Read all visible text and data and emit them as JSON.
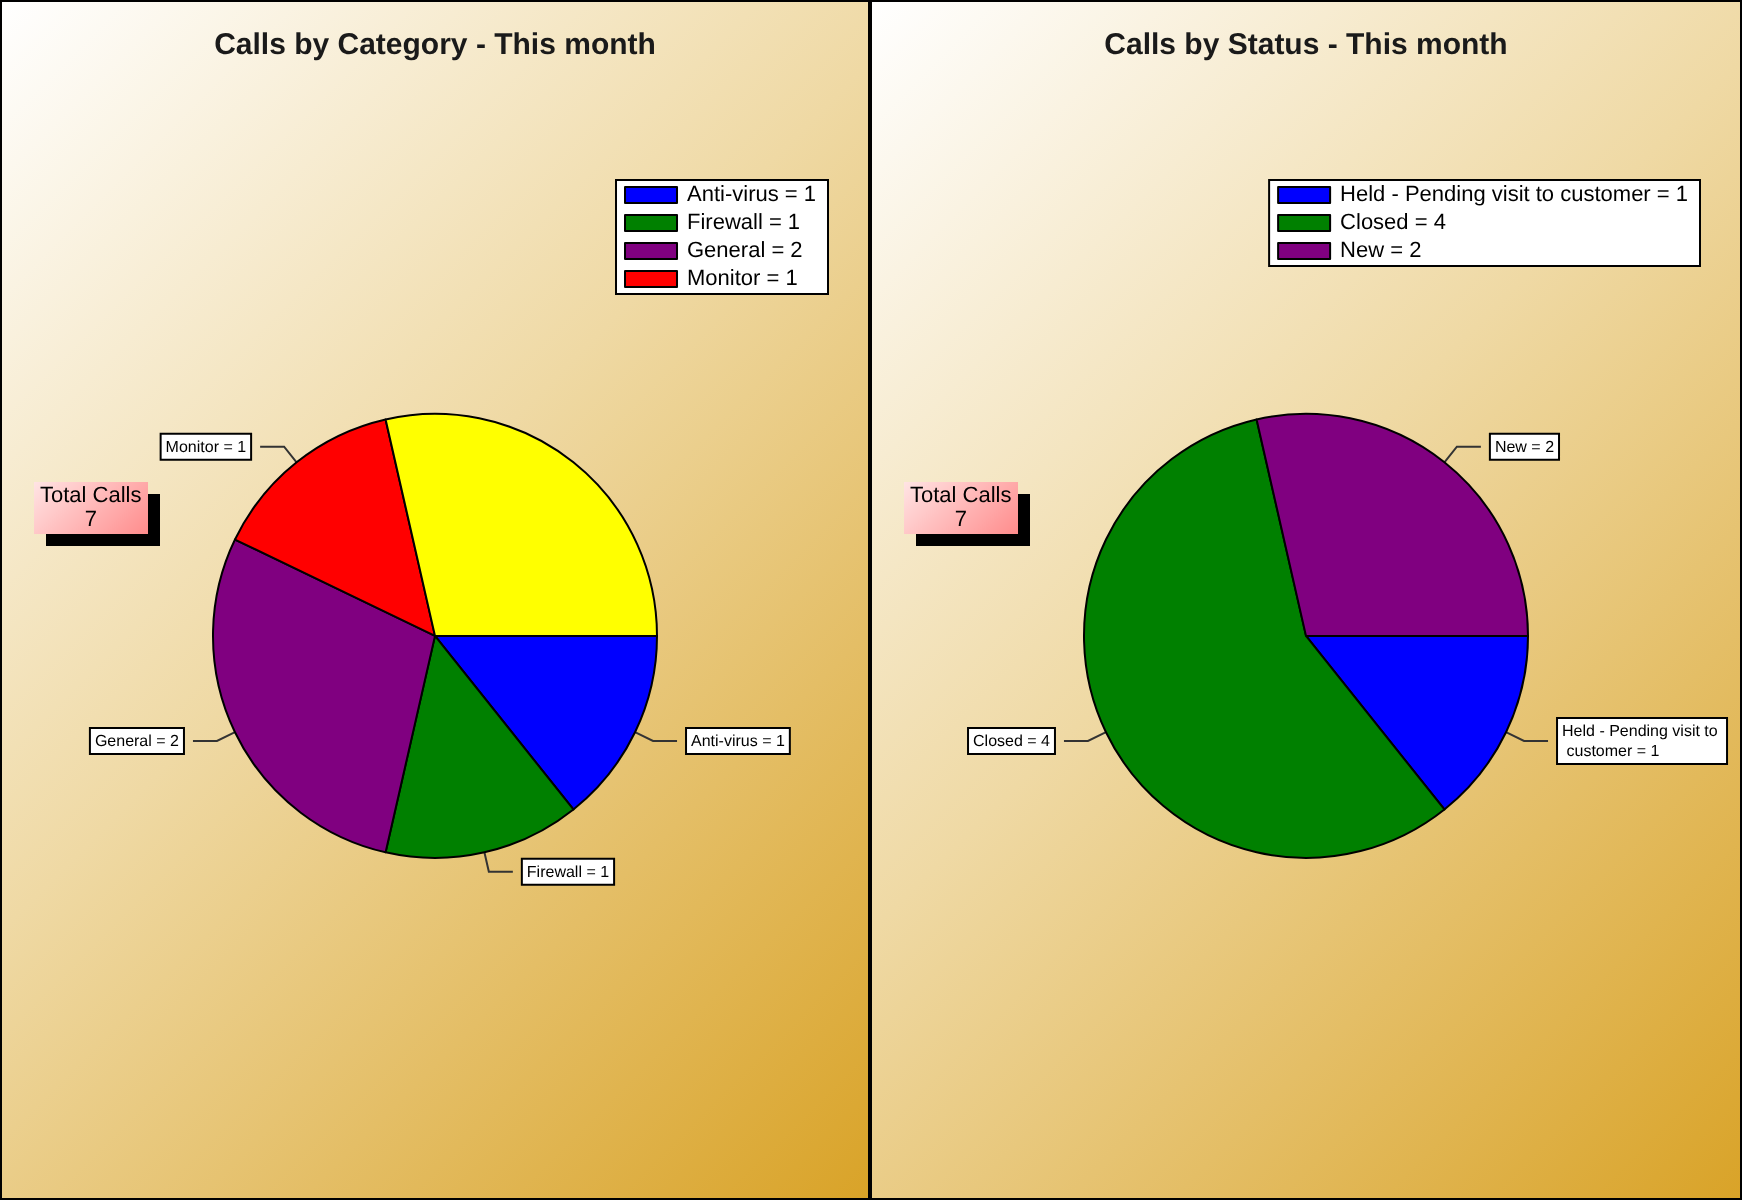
{
  "chart_data": [
    {
      "type": "pie",
      "title": "Calls by Category - This month",
      "categories": [
        "Anti-virus = 1",
        "Firewall = 1",
        "General = 2",
        "Monitor = 1",
        null
      ],
      "values": [
        1,
        1,
        2,
        1,
        2
      ],
      "colors": [
        "#0000ff",
        "#008000",
        "#800080",
        "#ff0000",
        "#ffff00"
      ],
      "legend": "top right",
      "annotations": [
        "Total Calls\n7"
      ]
    },
    {
      "type": "pie",
      "title": "Calls by Status - This month",
      "categories": [
        "Held - Pending visit to customer = 1",
        "Closed = 4",
        "New = 2"
      ],
      "values": [
        1,
        4,
        2
      ],
      "colors": [
        "#0000ff",
        "#008000",
        "#800080"
      ],
      "legend": "top right",
      "annotations": [
        "Total Calls\n7"
      ]
    }
  ]
}
